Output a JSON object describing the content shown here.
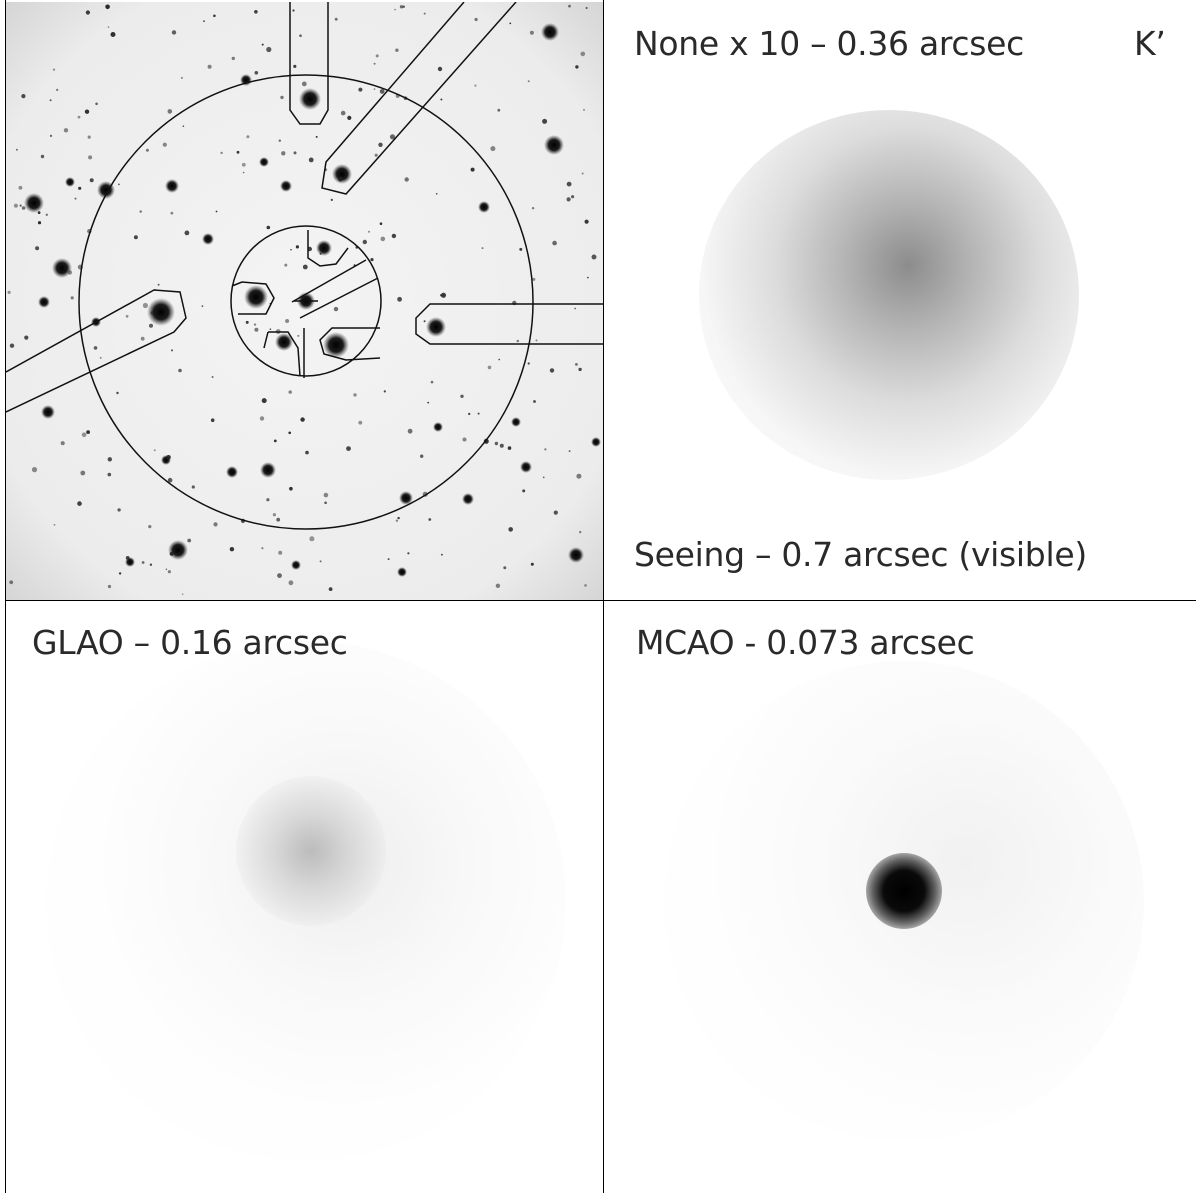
{
  "panels": {
    "field": {
      "name": "star-field"
    },
    "none": {
      "label": "None x 10 – 0.36 arcsec",
      "band": "K’",
      "seeing": "Seeing – 0.7 arcsec (visible)"
    },
    "glao": {
      "label": "GLAO – 0.16 arcsec"
    },
    "mcao": {
      "label": "MCAO - 0.073 arcsec"
    }
  },
  "colors": {
    "border": "#000000",
    "text": "#2a2a2a"
  }
}
